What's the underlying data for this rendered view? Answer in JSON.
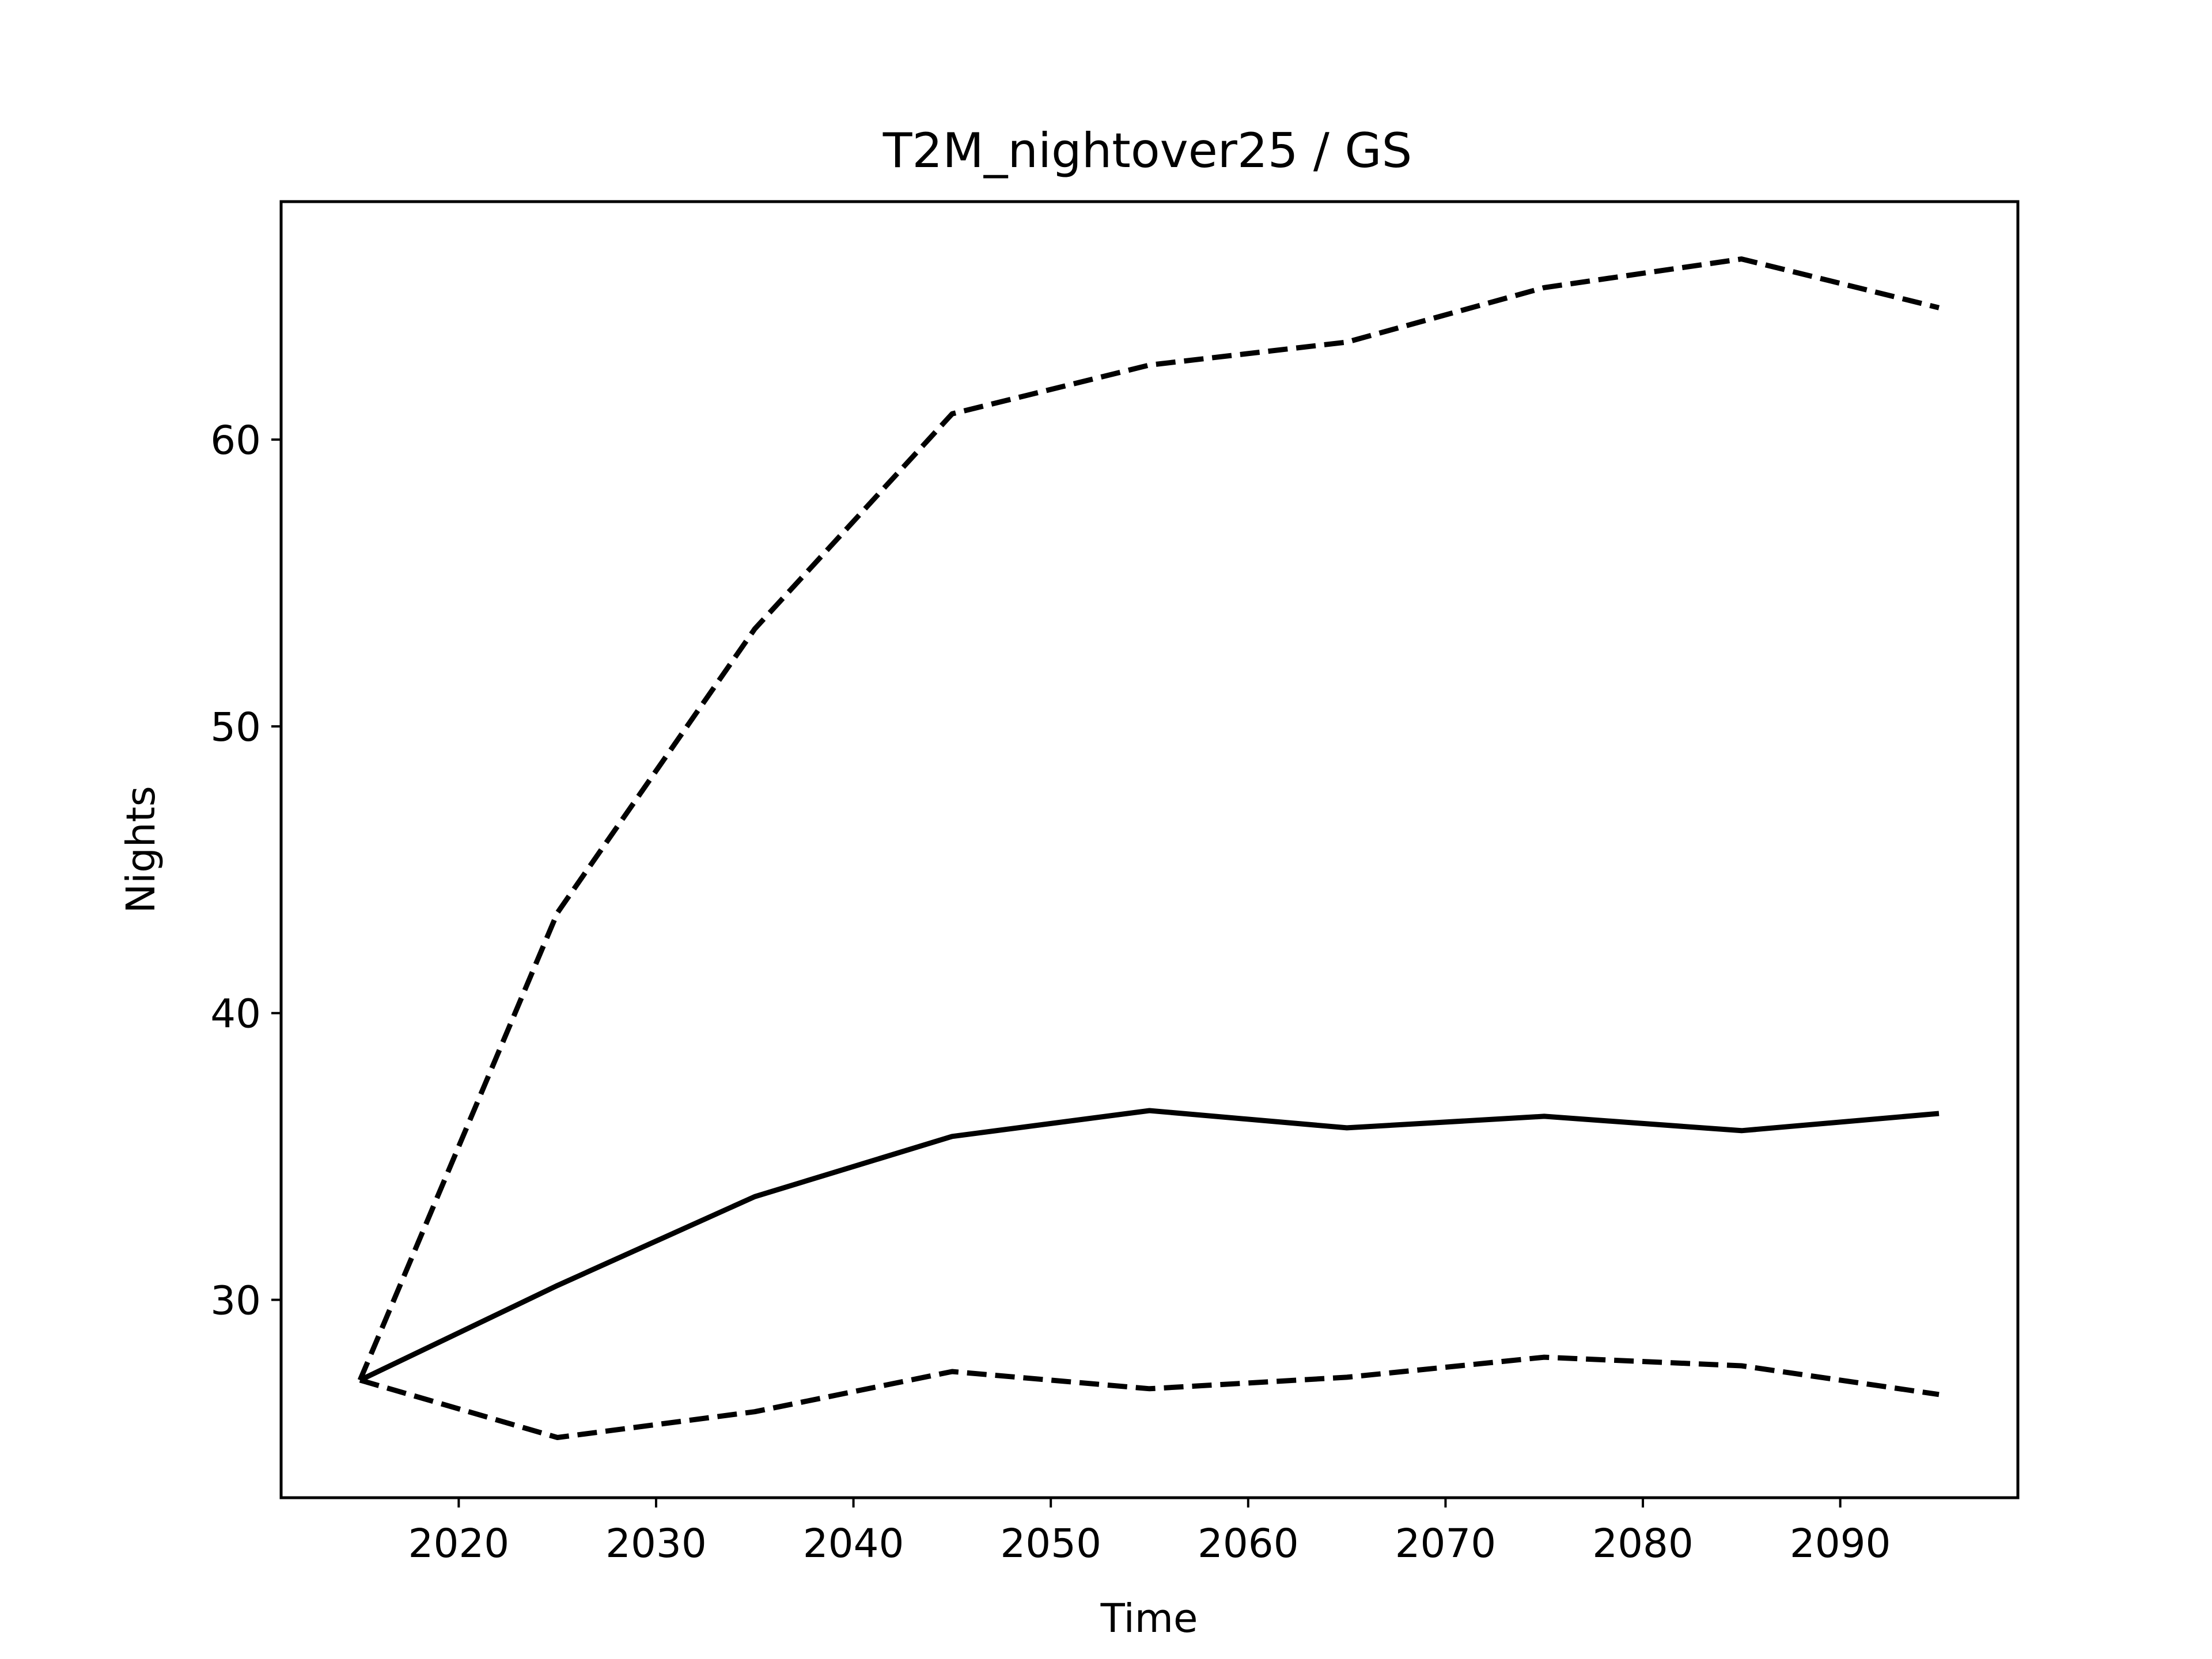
{
  "chart_data": {
    "type": "line",
    "title": "T2M_nightover25 / GS",
    "xlabel": "Time",
    "ylabel": "Nights",
    "xlim": [
      2011,
      2099
    ],
    "ylim": [
      23.1,
      68.3
    ],
    "xticks": [
      2020,
      2030,
      2040,
      2050,
      2060,
      2070,
      2080,
      2090
    ],
    "yticks": [
      30,
      40,
      50,
      60
    ],
    "grid": false,
    "legend": "none",
    "x": [
      2015,
      2025,
      2035,
      2045,
      2055,
      2065,
      2075,
      2085,
      2095
    ],
    "series": [
      {
        "style": "dashed",
        "color": "#000000",
        "values": [
          27.2,
          43.5,
          53.4,
          60.9,
          62.6,
          63.4,
          65.3,
          66.3,
          64.6
        ]
      },
      {
        "style": "solid",
        "color": "#000000",
        "values": [
          27.2,
          30.5,
          33.6,
          35.7,
          36.6,
          36.0,
          36.4,
          35.9,
          36.5
        ]
      },
      {
        "style": "dashed",
        "color": "#000000",
        "values": [
          27.2,
          25.2,
          26.1,
          27.5,
          26.9,
          27.3,
          28.0,
          27.7,
          26.7
        ]
      }
    ]
  }
}
